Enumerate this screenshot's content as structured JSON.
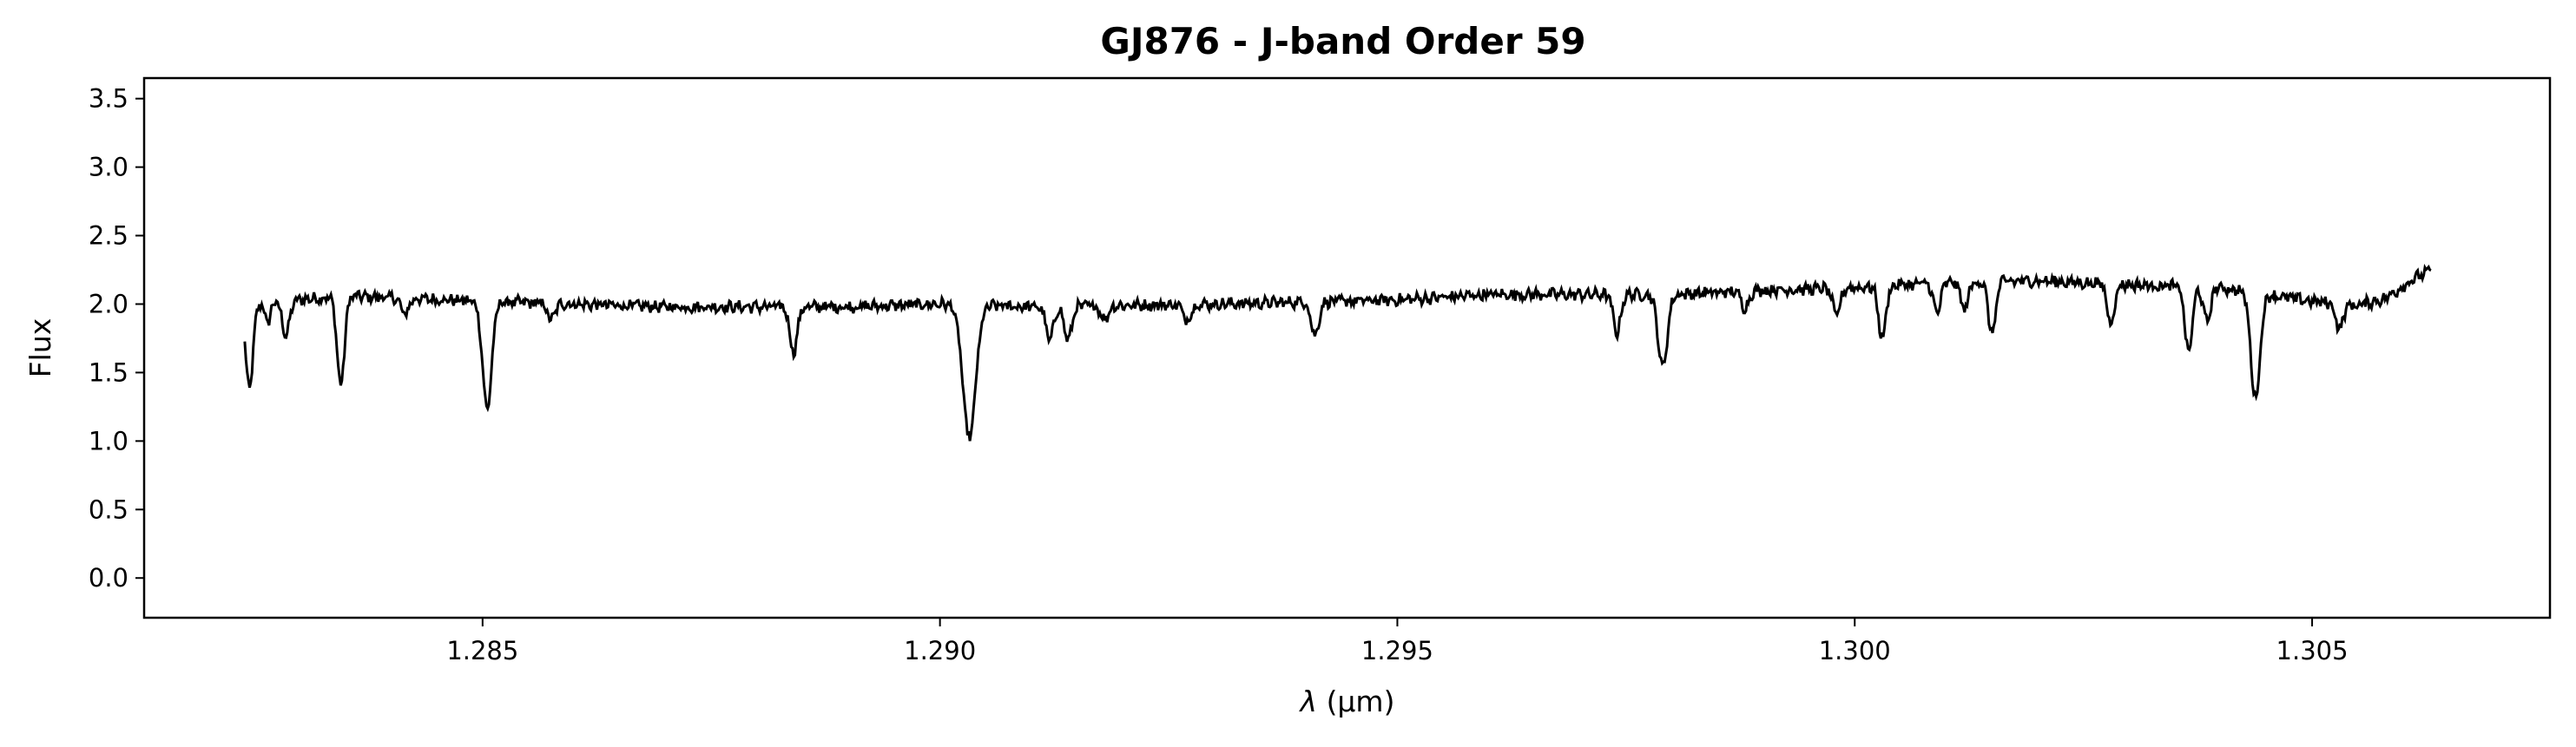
{
  "chart_data": {
    "type": "line",
    "title": "GJ876 - J-band Order 59",
    "xlabel_symbol": "λ",
    "xlabel_unit": "(μm)",
    "ylabel": "Flux",
    "xlim": [
      1.2813,
      1.3076
    ],
    "ylim": [
      -0.29,
      3.65
    ],
    "grid": false,
    "xticks": [
      1.285,
      1.29,
      1.295,
      1.3,
      1.305
    ],
    "xtick_labels": [
      "1.285",
      "1.290",
      "1.295",
      "1.300",
      "1.305"
    ],
    "yticks": [
      0.0,
      0.5,
      1.0,
      1.5,
      2.0,
      2.5,
      3.0,
      3.5
    ],
    "ytick_labels": [
      "0.0",
      "0.5",
      "1.0",
      "1.5",
      "2.0",
      "2.5",
      "3.0",
      "3.5"
    ],
    "series": [
      {
        "color": "#000000",
        "x_range": [
          1.2824,
          1.3063
        ],
        "continuum": [
          [
            1.2824,
            2.0
          ],
          [
            1.2835,
            2.06
          ],
          [
            1.285,
            2.02
          ],
          [
            1.287,
            1.98
          ],
          [
            1.289,
            1.98
          ],
          [
            1.29,
            2.0
          ],
          [
            1.291,
            1.98
          ],
          [
            1.293,
            2.0
          ],
          [
            1.295,
            2.03
          ],
          [
            1.296,
            2.07
          ],
          [
            1.298,
            2.07
          ],
          [
            1.299,
            2.1
          ],
          [
            1.3,
            2.12
          ],
          [
            1.301,
            2.16
          ],
          [
            1.302,
            2.17
          ],
          [
            1.303,
            2.14
          ],
          [
            1.304,
            2.12
          ],
          [
            1.305,
            2.02
          ],
          [
            1.3055,
            1.99
          ],
          [
            1.3058,
            2.04
          ],
          [
            1.3061,
            2.18
          ],
          [
            1.3063,
            2.25
          ]
        ],
        "absorption_lines": [
          {
            "x": 1.28245,
            "depth": 0.62,
            "width": 4e-05
          },
          {
            "x": 1.28265,
            "depth": 0.15,
            "width": 3e-05
          },
          {
            "x": 1.28285,
            "depth": 0.25,
            "width": 4e-05
          },
          {
            "x": 1.28345,
            "depth": 0.65,
            "width": 4e-05
          },
          {
            "x": 1.28415,
            "depth": 0.12,
            "width": 4e-05
          },
          {
            "x": 1.28505,
            "depth": 0.78,
            "width": 5e-05
          },
          {
            "x": 1.28575,
            "depth": 0.12,
            "width": 4e-05
          },
          {
            "x": 1.2884,
            "depth": 0.33,
            "width": 4e-05
          },
          {
            "x": 1.29032,
            "depth": 0.97,
            "width": 7e-05
          },
          {
            "x": 1.2912,
            "depth": 0.25,
            "width": 4e-05
          },
          {
            "x": 1.2914,
            "depth": 0.25,
            "width": 4e-05
          },
          {
            "x": 1.2918,
            "depth": 0.1,
            "width": 4e-05
          },
          {
            "x": 1.2927,
            "depth": 0.12,
            "width": 4e-05
          },
          {
            "x": 1.2941,
            "depth": 0.25,
            "width": 4e-05
          },
          {
            "x": 1.2974,
            "depth": 0.28,
            "width": 4e-05
          },
          {
            "x": 1.2979,
            "depth": 0.53,
            "width": 5e-05
          },
          {
            "x": 1.2988,
            "depth": 0.12,
            "width": 4e-05
          },
          {
            "x": 1.2998,
            "depth": 0.2,
            "width": 4e-05
          },
          {
            "x": 1.3003,
            "depth": 0.38,
            "width": 4e-05
          },
          {
            "x": 1.3009,
            "depth": 0.22,
            "width": 4e-05
          },
          {
            "x": 1.3012,
            "depth": 0.2,
            "width": 4e-05
          },
          {
            "x": 1.3015,
            "depth": 0.38,
            "width": 4e-05
          },
          {
            "x": 1.3028,
            "depth": 0.28,
            "width": 4e-05
          },
          {
            "x": 1.30365,
            "depth": 0.48,
            "width": 4e-05
          },
          {
            "x": 1.30385,
            "depth": 0.25,
            "width": 4e-05
          },
          {
            "x": 1.30438,
            "depth": 0.77,
            "width": 5e-05
          },
          {
            "x": 1.3053,
            "depth": 0.18,
            "width": 4e-05
          }
        ],
        "noise_amplitude": 0.035
      }
    ]
  }
}
